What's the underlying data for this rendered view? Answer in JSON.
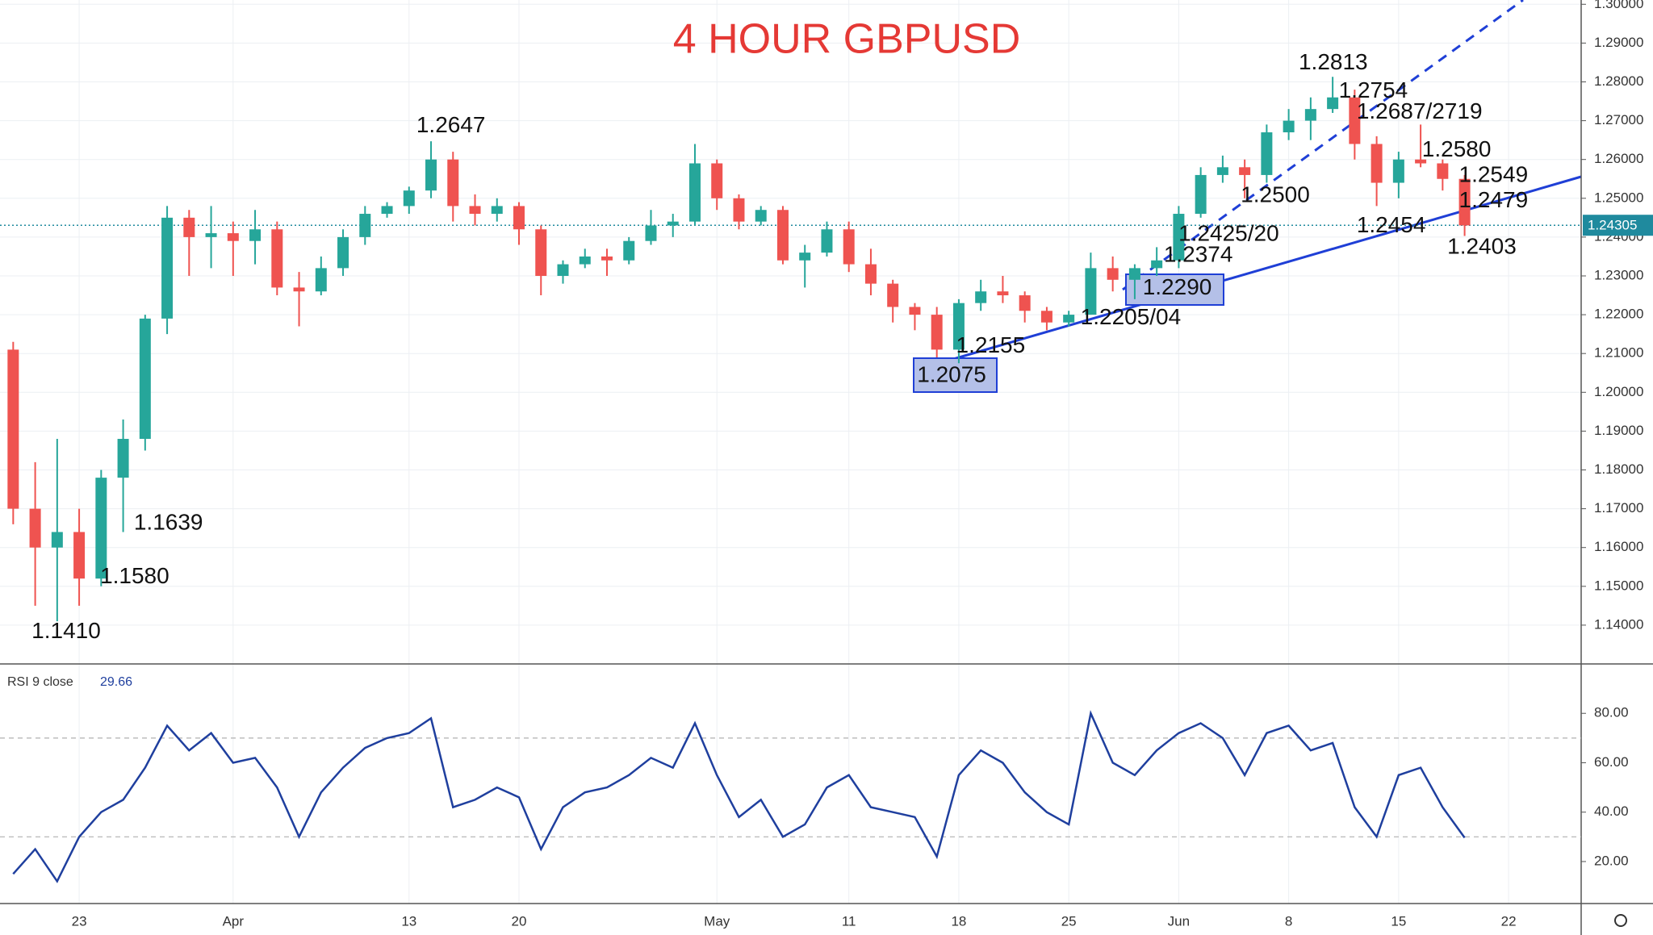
{
  "chart_data": [
    {
      "type": "candlestick",
      "title": "4 HOUR GBPUSD",
      "title_color": "#e53935",
      "x": [
        -3,
        -2,
        -1,
        0,
        1,
        2,
        3,
        4,
        5,
        6,
        7,
        8,
        9,
        10,
        11,
        12,
        13,
        14,
        15,
        16,
        17,
        18,
        19,
        20,
        21,
        22,
        23,
        24,
        25,
        26,
        27,
        28,
        29,
        30,
        31,
        32,
        33,
        34,
        35,
        36,
        37,
        38,
        39,
        40,
        41,
        42,
        43,
        44,
        45,
        46,
        47,
        48,
        49,
        50,
        51,
        52,
        53,
        54,
        55,
        56,
        57,
        58,
        59,
        60,
        61,
        62,
        63
      ],
      "open": [
        1.211,
        1.17,
        1.16,
        1.164,
        1.152,
        1.178,
        1.188,
        1.219,
        1.245,
        1.24,
        1.241,
        1.239,
        1.242,
        1.227,
        1.226,
        1.232,
        1.24,
        1.246,
        1.248,
        1.252,
        1.26,
        1.248,
        1.246,
        1.248,
        1.242,
        1.23,
        1.233,
        1.235,
        1.234,
        1.239,
        1.243,
        1.244,
        1.259,
        1.25,
        1.244,
        1.247,
        1.234,
        1.236,
        1.242,
        1.233,
        1.228,
        1.222,
        1.22,
        1.211,
        1.223,
        1.226,
        1.225,
        1.221,
        1.218,
        1.22,
        1.232,
        1.229,
        1.232,
        1.234,
        1.246,
        1.256,
        1.258,
        1.256,
        1.267,
        1.27,
        1.273,
        1.276,
        1.264,
        1.254,
        1.26,
        1.259,
        1.255
      ],
      "high": [
        1.213,
        1.182,
        1.188,
        1.17,
        1.18,
        1.193,
        1.22,
        1.248,
        1.247,
        1.248,
        1.244,
        1.247,
        1.244,
        1.231,
        1.235,
        1.242,
        1.248,
        1.249,
        1.253,
        1.2647,
        1.262,
        1.251,
        1.25,
        1.249,
        1.243,
        1.234,
        1.237,
        1.237,
        1.24,
        1.247,
        1.246,
        1.264,
        1.26,
        1.251,
        1.248,
        1.248,
        1.238,
        1.244,
        1.244,
        1.237,
        1.229,
        1.223,
        1.222,
        1.224,
        1.229,
        1.23,
        1.226,
        1.222,
        1.221,
        1.236,
        1.235,
        1.233,
        1.2374,
        1.248,
        1.258,
        1.261,
        1.26,
        1.269,
        1.273,
        1.276,
        1.2813,
        1.278,
        1.266,
        1.262,
        1.269,
        1.26,
        1.256
      ],
      "low": [
        1.166,
        1.145,
        1.141,
        1.145,
        1.15,
        1.164,
        1.185,
        1.215,
        1.23,
        1.232,
        1.23,
        1.233,
        1.225,
        1.217,
        1.225,
        1.23,
        1.238,
        1.245,
        1.246,
        1.25,
        1.244,
        1.243,
        1.244,
        1.238,
        1.225,
        1.228,
        1.232,
        1.23,
        1.233,
        1.238,
        1.24,
        1.243,
        1.247,
        1.242,
        1.243,
        1.233,
        1.227,
        1.235,
        1.231,
        1.225,
        1.218,
        1.216,
        1.209,
        1.2075,
        1.221,
        1.223,
        1.218,
        1.216,
        1.217,
        1.22,
        1.226,
        1.224,
        1.23,
        1.232,
        1.245,
        1.254,
        1.25,
        1.254,
        1.265,
        1.265,
        1.272,
        1.26,
        1.248,
        1.25,
        1.258,
        1.252,
        1.2403
      ],
      "close": [
        1.17,
        1.16,
        1.164,
        1.152,
        1.178,
        1.188,
        1.219,
        1.245,
        1.24,
        1.241,
        1.239,
        1.242,
        1.227,
        1.226,
        1.232,
        1.24,
        1.246,
        1.248,
        1.252,
        1.26,
        1.248,
        1.246,
        1.248,
        1.242,
        1.23,
        1.233,
        1.235,
        1.234,
        1.239,
        1.243,
        1.244,
        1.259,
        1.25,
        1.244,
        1.247,
        1.234,
        1.236,
        1.242,
        1.233,
        1.228,
        1.222,
        1.22,
        1.211,
        1.223,
        1.226,
        1.225,
        1.221,
        1.218,
        1.22,
        1.232,
        1.229,
        1.232,
        1.234,
        1.246,
        1.256,
        1.258,
        1.256,
        1.267,
        1.27,
        1.273,
        1.276,
        1.264,
        1.254,
        1.26,
        1.259,
        1.255,
        1.243
      ],
      "up_color": "#26a69a",
      "down_color": "#ef5350",
      "xlim": [
        -3.6,
        68.3
      ],
      "ylim": [
        1.13,
        1.3011
      ],
      "xticks": [
        {
          "value": 0,
          "label": "23"
        },
        {
          "value": 7,
          "label": "Apr"
        },
        {
          "value": 15,
          "label": "13"
        },
        {
          "value": 20,
          "label": "20"
        },
        {
          "value": 29,
          "label": "May"
        },
        {
          "value": 35,
          "label": "11"
        },
        {
          "value": 40,
          "label": "18"
        },
        {
          "value": 45,
          "label": "25"
        },
        {
          "value": 50,
          "label": "Jun"
        },
        {
          "value": 55,
          "label": "8"
        },
        {
          "value": 60,
          "label": "15"
        },
        {
          "value": 65,
          "label": "22"
        }
      ],
      "yticks": [
        {
          "value": 1.14,
          "label": "1.14000"
        },
        {
          "value": 1.15,
          "label": "1.15000"
        },
        {
          "value": 1.16,
          "label": "1.16000"
        },
        {
          "value": 1.17,
          "label": "1.17000"
        },
        {
          "value": 1.18,
          "label": "1.18000"
        },
        {
          "value": 1.19,
          "label": "1.19000"
        },
        {
          "value": 1.2,
          "label": "1.20000"
        },
        {
          "value": 1.21,
          "label": "1.21000"
        },
        {
          "value": 1.22,
          "label": "1.22000"
        },
        {
          "value": 1.23,
          "label": "1.23000"
        },
        {
          "value": 1.24,
          "label": "1.24000"
        },
        {
          "value": 1.25,
          "label": "1.25000"
        },
        {
          "value": 1.26,
          "label": "1.26000"
        },
        {
          "value": 1.27,
          "label": "1.27000"
        },
        {
          "value": 1.28,
          "label": "1.28000"
        },
        {
          "value": 1.29,
          "label": "1.29000"
        },
        {
          "value": 1.3,
          "label": "1.30000"
        }
      ],
      "grid": true,
      "last_price": 1.24305,
      "last_price_color": "#1f8a9e",
      "annotations": [
        "1.2813",
        "1.2754",
        "1.2687/2719",
        "1.2580",
        "1.2549",
        "1.2479",
        "1.2454",
        "1.2403",
        "1.2500",
        "1.2425/20",
        "1.2374",
        "1.2290",
        "1.2205/04",
        "1.2155",
        "1.2075",
        "1.2647",
        "1.1639",
        "1.1580",
        "1.1410"
      ]
    },
    {
      "type": "line",
      "title": "RSI 9 close",
      "last_value": 29.66,
      "color": "#1f3f9e",
      "x": [
        -3,
        -2,
        -1,
        0,
        1,
        2,
        3,
        4,
        5,
        6,
        7,
        8,
        9,
        10,
        11,
        12,
        13,
        14,
        15,
        16,
        17,
        18,
        19,
        20,
        21,
        22,
        23,
        24,
        25,
        26,
        27,
        28,
        29,
        30,
        31,
        32,
        33,
        34,
        35,
        36,
        37,
        38,
        39,
        40,
        41,
        42,
        43,
        44,
        45,
        46,
        47,
        48,
        49,
        50,
        51,
        52,
        53,
        54,
        55,
        56,
        57,
        58,
        59,
        60,
        61,
        62,
        63
      ],
      "values": [
        15,
        25,
        12,
        30,
        40,
        45,
        58,
        75,
        65,
        72,
        60,
        62,
        50,
        30,
        48,
        58,
        66,
        70,
        72,
        78,
        42,
        45,
        50,
        46,
        25,
        42,
        48,
        50,
        55,
        62,
        58,
        76,
        55,
        38,
        45,
        30,
        35,
        50,
        55,
        42,
        40,
        38,
        22,
        55,
        65,
        60,
        48,
        40,
        35,
        80,
        60,
        55,
        65,
        72,
        76,
        70,
        55,
        72,
        75,
        65,
        68,
        42,
        30,
        55,
        58,
        42,
        29.66
      ],
      "xlim": [
        -3.6,
        68.3
      ],
      "ylim": [
        3,
        100
      ],
      "yticks": [
        {
          "value": 20,
          "label": "20.00"
        },
        {
          "value": 40,
          "label": "40.00"
        },
        {
          "value": 60,
          "label": "60.00"
        },
        {
          "value": 80,
          "label": "80.00"
        }
      ],
      "levels": [
        70,
        30
      ]
    }
  ]
}
